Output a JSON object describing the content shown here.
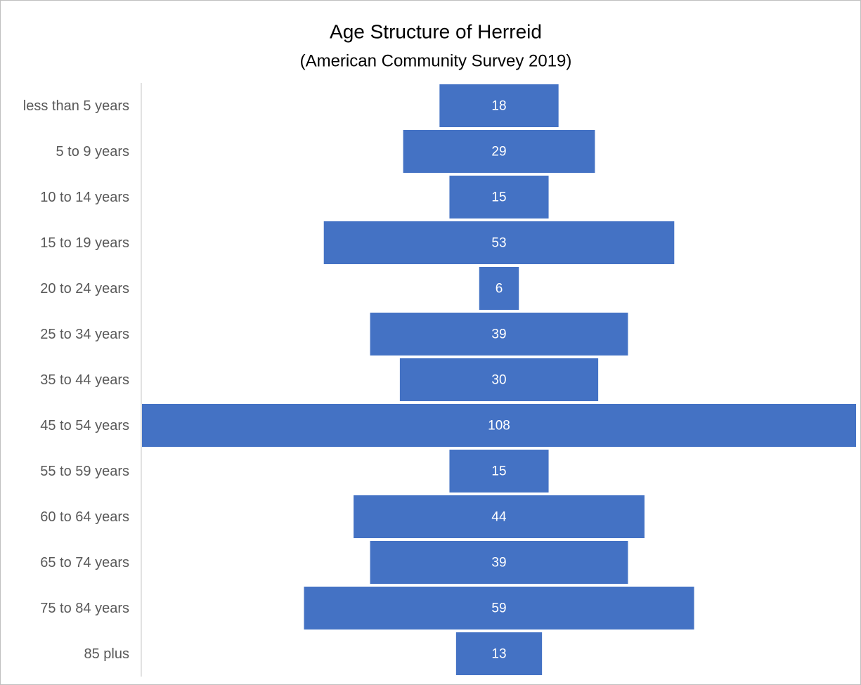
{
  "chart_data": {
    "type": "funnel",
    "title": "Age Structure of Herreid",
    "subtitle": "(American Community Survey 2019)",
    "categories": [
      "less than 5 years",
      "5 to 9 years",
      "10 to 14 years",
      "15 to 19 years",
      "20 to 24 years",
      "25 to 34 years",
      "35 to 44 years",
      "45 to 54 years",
      "55 to 59 years",
      "60 to 64 years",
      "65 to 74 years",
      "75 to 84 years",
      "85 plus"
    ],
    "values": [
      18,
      29,
      15,
      53,
      6,
      39,
      30,
      108,
      15,
      44,
      39,
      59,
      13
    ],
    "color": "#4472c4"
  }
}
